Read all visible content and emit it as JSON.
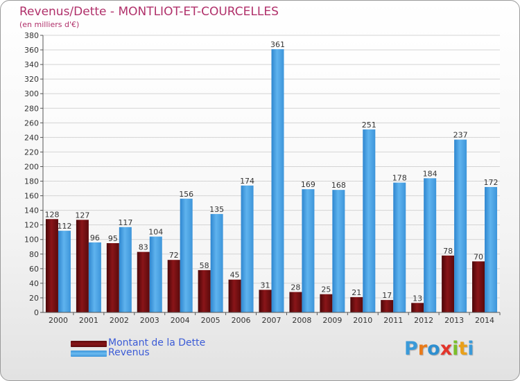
{
  "header": {
    "title": "Revenus/Dette - MONTLIOT-ET-COURCELLES",
    "subtitle": "(en milliers d'€)"
  },
  "legend": {
    "items": [
      {
        "label": "Montant de la Dette",
        "color": "#7a0f12"
      },
      {
        "label": "Revenus",
        "color": "#4aa3e6"
      }
    ]
  },
  "logo": {
    "text": "Proxiti",
    "letters": [
      {
        "ch": "P",
        "color": "#3a9ad9"
      },
      {
        "ch": "r",
        "color": "#e97a1a"
      },
      {
        "ch": "o",
        "color": "#2e8fd0"
      },
      {
        "ch": "x",
        "color": "#e3352b"
      },
      {
        "ch": "i",
        "color": "#7cbf2a"
      },
      {
        "ch": "t",
        "color": "#e9a01a"
      },
      {
        "ch": "i",
        "color": "#3a9ad9"
      }
    ]
  },
  "chart_data": {
    "type": "bar",
    "title": "Revenus/Dette - MONTLIOT-ET-COURCELLES",
    "subtitle": "(en milliers d'€)",
    "categories": [
      "2000",
      "2001",
      "2002",
      "2003",
      "2004",
      "2005",
      "2006",
      "2007",
      "2008",
      "2009",
      "2010",
      "2011",
      "2012",
      "2013",
      "2014"
    ],
    "series": [
      {
        "name": "Montant de la Dette",
        "color": "#7a0f12",
        "values": [
          128,
          127,
          95,
          83,
          72,
          58,
          45,
          31,
          28,
          25,
          21,
          17,
          13,
          78,
          70
        ]
      },
      {
        "name": "Revenus",
        "color": "#4aa3e6",
        "values": [
          112,
          96,
          117,
          104,
          156,
          135,
          174,
          361,
          169,
          168,
          251,
          178,
          184,
          237,
          172
        ]
      }
    ],
    "ylim": [
      0,
      380
    ],
    "ytick_step": 20,
    "grid": true,
    "legend_position": "bottom-left"
  }
}
